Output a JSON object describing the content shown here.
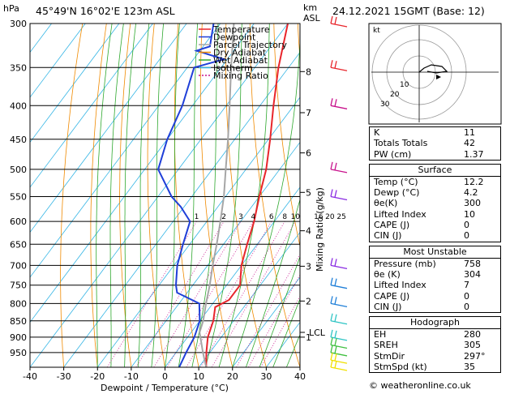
{
  "header": {
    "location": "45°49'N  16°02'E  123m  ASL",
    "datetime": "24.12.2021  15GMT  (Base: 12)",
    "unit_hpa": "hPa",
    "unit_km": "km",
    "unit_asl": "ASL"
  },
  "chart_data": {
    "type": "line",
    "xlabel": "Dewpoint / Temperature (°C)",
    "ylabel_right": "Mixing Ratio (g/kg)",
    "xlim": [
      -40,
      40
    ],
    "ylim": [
      1000,
      300
    ],
    "y_scale": "log",
    "x_ticks": [
      -40,
      -30,
      -20,
      -10,
      0,
      10,
      20,
      30,
      40
    ],
    "pressure_levels": [
      300,
      350,
      400,
      450,
      500,
      550,
      600,
      650,
      700,
      750,
      800,
      850,
      900,
      950
    ],
    "km_ticks": [
      {
        "km": "8",
        "p": 355
      },
      {
        "km": "7",
        "p": 410
      },
      {
        "km": "6",
        "p": 472
      },
      {
        "km": "5",
        "p": 542
      },
      {
        "km": "4",
        "p": 620
      },
      {
        "km": "3",
        "p": 702
      },
      {
        "km": "2",
        "p": 793
      },
      {
        "km": "1",
        "p": 900
      }
    ],
    "lcl_label": "LCL",
    "lcl_p": 885,
    "mixing_ratio_labels": [
      "1",
      "2",
      "3",
      "4",
      "6",
      "8",
      "10",
      "16",
      "20",
      "25"
    ],
    "mixing_ratio_values": [
      1,
      2,
      3,
      4,
      6,
      8,
      10,
      16,
      20,
      25
    ],
    "legend": [
      "Temperature",
      "Dewpoint",
      "Parcel Trajectory",
      "Dry Adiabat",
      "Wet Adiabat",
      "Isotherm",
      "Mixing Ratio"
    ],
    "series": [
      {
        "name": "Temperature",
        "color": "#e8252b",
        "points": [
          [
            1000,
            12.2
          ],
          [
            950,
            9
          ],
          [
            900,
            6
          ],
          [
            850,
            4
          ],
          [
            810,
            1.5
          ],
          [
            790,
            4
          ],
          [
            750,
            4
          ],
          [
            700,
            0
          ],
          [
            650,
            -3
          ],
          [
            600,
            -6
          ],
          [
            550,
            -10
          ],
          [
            500,
            -14
          ],
          [
            450,
            -19.5
          ],
          [
            400,
            -26
          ],
          [
            350,
            -33
          ],
          [
            300,
            -40
          ]
        ]
      },
      {
        "name": "Dewpoint",
        "color": "#1f3fd8",
        "points": [
          [
            1000,
            4.2
          ],
          [
            950,
            3
          ],
          [
            900,
            2
          ],
          [
            850,
            0
          ],
          [
            800,
            -4
          ],
          [
            770,
            -13
          ],
          [
            750,
            -15
          ],
          [
            700,
            -19
          ],
          [
            650,
            -22
          ],
          [
            600,
            -25
          ],
          [
            570,
            -31
          ],
          [
            550,
            -36
          ],
          [
            500,
            -46
          ],
          [
            450,
            -50
          ],
          [
            400,
            -53
          ],
          [
            350,
            -58
          ],
          [
            340,
            -51
          ],
          [
            330,
            -61
          ],
          [
            325,
            -58
          ],
          [
            300,
            -62
          ]
        ]
      },
      {
        "name": "Parcel Trajectory",
        "color": "#a6a6a6",
        "points": [
          [
            1000,
            12.2
          ],
          [
            950,
            8
          ],
          [
            885,
            2.5
          ],
          [
            850,
            1
          ],
          [
            800,
            -2
          ],
          [
            750,
            -5
          ],
          [
            700,
            -8.5
          ],
          [
            650,
            -12
          ],
          [
            600,
            -16
          ],
          [
            550,
            -20.5
          ],
          [
            500,
            -26
          ],
          [
            450,
            -32
          ],
          [
            400,
            -39
          ],
          [
            350,
            -47
          ],
          [
            300,
            -56
          ]
        ]
      }
    ],
    "wind_colors": [
      "#e8252b",
      "#c8128c",
      "#8a2be2",
      "#1f7fd8",
      "#2ec4c4",
      "#40c040",
      "#f0e000"
    ],
    "hodograph_label": "kt",
    "hodograph_rings": [
      "10",
      "20",
      "30"
    ]
  },
  "indices": {
    "k_label": "K",
    "k_value": "11",
    "tt_label": "Totals Totals",
    "tt_value": "42",
    "pw_label": "PW (cm)",
    "pw_value": "1.37"
  },
  "surface": {
    "title": "Surface",
    "rows": [
      {
        "label": "Temp (°C)",
        "value": "12.2"
      },
      {
        "label": "Dewp (°C)",
        "value": "4.2"
      },
      {
        "label": "θe(K)",
        "value": "300"
      },
      {
        "label": "Lifted Index",
        "value": "10"
      },
      {
        "label": "CAPE (J)",
        "value": "0"
      },
      {
        "label": "CIN (J)",
        "value": "0"
      }
    ]
  },
  "most_unstable": {
    "title": "Most Unstable",
    "rows": [
      {
        "label": "Pressure (mb)",
        "value": "758"
      },
      {
        "label": "θe (K)",
        "value": "304"
      },
      {
        "label": "Lifted Index",
        "value": "7"
      },
      {
        "label": "CAPE (J)",
        "value": "0"
      },
      {
        "label": "CIN (J)",
        "value": "0"
      }
    ]
  },
  "hodograph": {
    "title": "Hodograph",
    "rows": [
      {
        "label": "EH",
        "value": "280"
      },
      {
        "label": "SREH",
        "value": "305"
      },
      {
        "label": "StmDir",
        "value": "297°"
      },
      {
        "label": "StmSpd (kt)",
        "value": "35"
      }
    ]
  },
  "footer": {
    "copyright": "© weatheronline.co.uk"
  }
}
